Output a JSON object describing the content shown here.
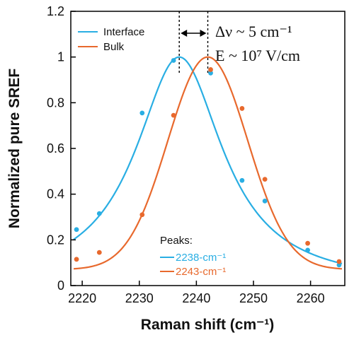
{
  "chart_data": {
    "type": "scatter",
    "xlabel": "Raman shift (cm⁻¹)",
    "ylabel": "Normalized pure SREF",
    "xlim": [
      2218,
      2266
    ],
    "ylim": [
      0,
      1.2
    ],
    "x_ticks": [
      2220,
      2230,
      2240,
      2250,
      2260
    ],
    "y_ticks": [
      0,
      0.2,
      0.4,
      0.6,
      0.8,
      1,
      1.2
    ],
    "grid": false,
    "legend_position": "top-left",
    "series": [
      {
        "name": "Interface",
        "color": "#29aee3",
        "points": [
          {
            "x": 2219.0,
            "y": 0.245
          },
          {
            "x": 2223.0,
            "y": 0.315
          },
          {
            "x": 2230.5,
            "y": 0.755
          },
          {
            "x": 2236.0,
            "y": 0.985
          },
          {
            "x": 2242.5,
            "y": 0.93
          },
          {
            "x": 2248.0,
            "y": 0.46
          },
          {
            "x": 2252.0,
            "y": 0.37
          },
          {
            "x": 2259.5,
            "y": 0.155
          },
          {
            "x": 2265.0,
            "y": 0.09
          }
        ],
        "fit": {
          "shape": "lorentzian",
          "peak": 2237,
          "amplitude": 1.0,
          "hwhm": 9.3,
          "baseline": 0.0
        }
      },
      {
        "name": "Bulk",
        "color": "#e8692d",
        "points": [
          {
            "x": 2219.0,
            "y": 0.115
          },
          {
            "x": 2223.0,
            "y": 0.145
          },
          {
            "x": 2230.5,
            "y": 0.31
          },
          {
            "x": 2236.0,
            "y": 0.745
          },
          {
            "x": 2242.5,
            "y": 0.945
          },
          {
            "x": 2248.0,
            "y": 0.775
          },
          {
            "x": 2252.0,
            "y": 0.465
          },
          {
            "x": 2259.5,
            "y": 0.185
          },
          {
            "x": 2265.0,
            "y": 0.105
          }
        ],
        "fit": {
          "shape": "gaussian",
          "peak": 2242,
          "amplitude": 0.93,
          "sigma": 7.0,
          "baseline": 0.07
        }
      }
    ],
    "annotations": {
      "delta_text": "Δν ~ 5 cm⁻¹",
      "field_text": "E ~ 10⁷ V/cm",
      "peaks_title": "Peaks:",
      "peaks": [
        {
          "label": "2238-cm⁻¹",
          "color": "#29aee3"
        },
        {
          "label": "2243-cm⁻¹",
          "color": "#e8692d"
        }
      ],
      "marker_x": [
        2237,
        2242
      ]
    }
  }
}
